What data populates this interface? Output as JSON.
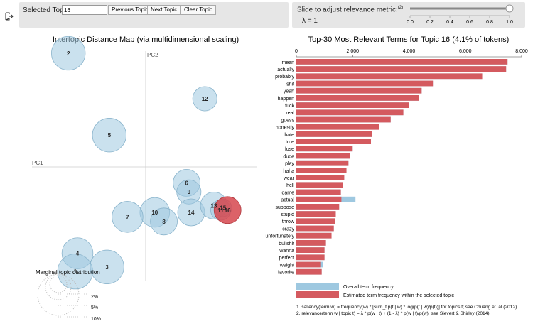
{
  "controls": {
    "selected_topic_label": "Selected Topic:",
    "selected_topic_value": "16",
    "previous_label": "Previous Topic",
    "next_label": "Next Topic",
    "clear_label": "Clear Topic",
    "slider_label": "Slide to adjust relevance metric:",
    "slider_footnote": "(2)",
    "lambda_label": "λ = 1",
    "slider_ticks": [
      "0.0",
      "0.2",
      "0.4",
      "0.6",
      "0.8",
      "1.0"
    ],
    "slider_value": 1.0
  },
  "map": {
    "title": "Intertopic Distance Map (via multidimensional scaling)",
    "pc1": "PC1",
    "pc2": "PC2",
    "marginal_label": "Marginal topic distribution",
    "legend_sizes": [
      "2%",
      "5%",
      "10%"
    ]
  },
  "bars": {
    "title": "Top-30 Most Relevant Terms for Topic 16 (4.1% of tokens)",
    "x_ticks": [
      "0",
      "2,000",
      "4,000",
      "6,000",
      "8,000"
    ],
    "legend_overall": "Overall term frequency",
    "legend_selected": "Estimated term frequency within the selected topic",
    "footnote1": "1. saliency(term w) = frequency(w) * [sum_t p(t | w) * log(p(t | w)/p(t))] for topics t; see Chuang et. al (2012)",
    "footnote2": "2. relevance(term w | topic t) = λ * p(w | t) + (1 - λ) * p(w | t)/p(w); see Sievert & Shirley (2014)"
  },
  "chart_data": [
    {
      "type": "scatter",
      "title": "Intertopic Distance Map (via multidimensional scaling)",
      "xlabel": "PC1",
      "ylabel": "PC2",
      "points": [
        {
          "label": "2",
          "x": -0.34,
          "y": 0.5,
          "size": 2.5
        },
        {
          "label": "12",
          "x": 0.26,
          "y": 0.3,
          "size": 1.8
        },
        {
          "label": "5",
          "x": -0.16,
          "y": 0.14,
          "size": 2.5
        },
        {
          "label": "6",
          "x": 0.18,
          "y": -0.07,
          "size": 2.0
        },
        {
          "label": "9",
          "x": 0.19,
          "y": -0.11,
          "size": 1.8
        },
        {
          "label": "10",
          "x": 0.04,
          "y": -0.2,
          "size": 2.2
        },
        {
          "label": "14",
          "x": 0.2,
          "y": -0.2,
          "size": 2.0
        },
        {
          "label": "7",
          "x": -0.08,
          "y": -0.22,
          "size": 2.3
        },
        {
          "label": "8",
          "x": 0.08,
          "y": -0.24,
          "size": 2.0
        },
        {
          "label": "13",
          "x": 0.3,
          "y": -0.17,
          "size": 2.0
        },
        {
          "label": "11",
          "x": 0.33,
          "y": -0.19,
          "size": 1.5
        },
        {
          "label": "15",
          "x": 0.34,
          "y": -0.18,
          "size": 1.3
        },
        {
          "label": "16",
          "x": 0.36,
          "y": -0.19,
          "size": 2.0,
          "selected": true
        },
        {
          "label": "4",
          "x": -0.3,
          "y": -0.38,
          "size": 2.3
        },
        {
          "label": "1",
          "x": -0.31,
          "y": -0.46,
          "size": 2.6
        },
        {
          "label": "3",
          "x": -0.17,
          "y": -0.44,
          "size": 2.5
        }
      ]
    },
    {
      "type": "bar",
      "orientation": "horizontal",
      "title": "Top-30 Most Relevant Terms for Topic 16 (4.1% of tokens)",
      "xlim": [
        0,
        8000
      ],
      "categories": [
        "mean",
        "actually",
        "probably",
        "shit",
        "yeah",
        "happen",
        "fuck",
        "real",
        "guess",
        "honestly",
        "hate",
        "true",
        "lose",
        "dude",
        "play",
        "haha",
        "wear",
        "hell",
        "game",
        "actual",
        "suppose",
        "stupid",
        "throw",
        "crazy",
        "unfortunately",
        "bullshit",
        "wanna",
        "perfect",
        "weight",
        "favorite"
      ],
      "series": [
        {
          "name": "Overall term frequency",
          "values": [
            7500,
            7450,
            6600,
            4850,
            4450,
            4350,
            4000,
            3800,
            3350,
            2950,
            2700,
            2650,
            2000,
            1900,
            1850,
            1780,
            1700,
            1650,
            1580,
            2100,
            1520,
            1400,
            1380,
            1330,
            1250,
            1050,
            1000,
            1000,
            950,
            900
          ]
        },
        {
          "name": "Estimated term frequency within the selected topic",
          "values": [
            7500,
            7450,
            6600,
            4850,
            4450,
            4350,
            4000,
            3800,
            3350,
            2950,
            2700,
            2650,
            2000,
            1900,
            1850,
            1780,
            1700,
            1650,
            1580,
            1600,
            1520,
            1400,
            1380,
            1330,
            1250,
            1050,
            1000,
            1000,
            850,
            900
          ]
        }
      ]
    }
  ]
}
